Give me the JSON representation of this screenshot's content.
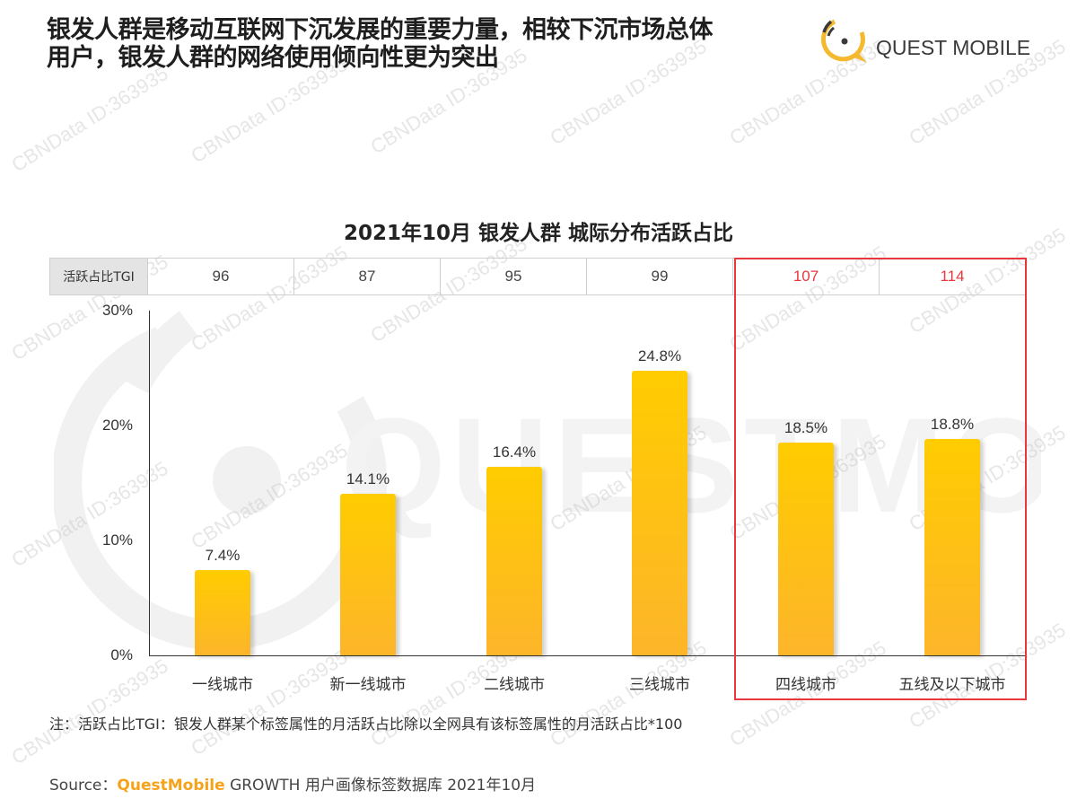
{
  "headline": {
    "line1": "银发人群是移动互联网下沉发展的重要力量，相较下沉市场总体",
    "line2": "用户，银发人群的网络使用倾向性更为突出"
  },
  "logo": {
    "text": "QUEST MOBILE",
    "icon": "quest-mobile-logo-icon",
    "accent_color": "#f5b82e"
  },
  "chart_title": "2021年10月 银发人群 城际分布活跃占比",
  "tgi_row": {
    "header": "活跃占比TGI",
    "values": [
      "96",
      "87",
      "95",
      "99",
      "107",
      "114"
    ],
    "highlight_color": "#e8383d"
  },
  "chart_data": {
    "type": "bar",
    "title": "2021年10月 银发人群 城际分布活跃占比",
    "categories": [
      "一线城市",
      "新一线城市",
      "二线城市",
      "三线城市",
      "四线城市",
      "五线及以下城市"
    ],
    "values": [
      7.4,
      14.1,
      16.4,
      24.8,
      18.5,
      18.8
    ],
    "value_labels": [
      "7.4%",
      "14.1%",
      "16.4%",
      "24.8%",
      "18.5%",
      "18.8%"
    ],
    "tgi": [
      96,
      87,
      95,
      99,
      107,
      114
    ],
    "xlabel": "",
    "ylabel": "",
    "ylim": [
      0,
      30
    ],
    "yticks": [
      "0%",
      "10%",
      "20%",
      "30%"
    ],
    "grid": false,
    "legend": null,
    "bar_color": "#ffc000",
    "highlighted_categories": [
      "四线城市",
      "五线及以下城市"
    ]
  },
  "note": "注：活跃占比TGI：银发人群某个标签属性的月活跃占比除以全网具有该标签属性的月活跃占比*100",
  "source": {
    "prefix": "Source：",
    "brand": "QuestMobile",
    "rest": " GROWTH 用户画像标签数据库 2021年10月"
  },
  "watermark": {
    "text": "CBNData ID:363935",
    "logo_text": "QUESTMOBILE"
  }
}
